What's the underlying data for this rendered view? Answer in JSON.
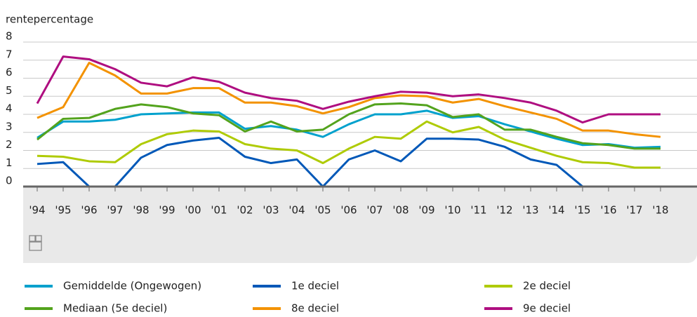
{
  "chart_data": {
    "type": "line",
    "title": "rentepercentage",
    "categories": [
      "'94",
      "'95",
      "'96",
      "'97",
      "'98",
      "'99",
      "'00",
      "'01",
      "'02",
      "'03",
      "'04",
      "'05",
      "'06",
      "'07",
      "'08",
      "'09",
      "'10",
      "'11",
      "'12",
      "'13",
      "'14",
      "'15",
      "'16",
      "'17",
      "'18"
    ],
    "ylim": [
      0,
      8
    ],
    "yticks": [
      0,
      1,
      2,
      3,
      4,
      5,
      6,
      7,
      8
    ],
    "grid": true,
    "series": [
      {
        "name": "Gemiddelde (Ongewogen)",
        "color": "#00a1cd",
        "values": [
          2.7,
          3.6,
          3.6,
          3.7,
          4.0,
          4.05,
          4.1,
          4.1,
          3.2,
          3.35,
          3.15,
          2.75,
          3.45,
          4.0,
          4.0,
          4.2,
          3.8,
          3.9,
          3.45,
          3.05,
          2.65,
          2.3,
          2.35,
          2.15,
          2.2
        ]
      },
      {
        "name": "1e deciel",
        "color": "#0058b8",
        "values": [
          1.25,
          1.35,
          0,
          0,
          1.6,
          2.3,
          2.55,
          2.7,
          1.65,
          1.3,
          1.5,
          0,
          1.5,
          2.0,
          1.4,
          2.65,
          2.65,
          2.6,
          2.2,
          1.5,
          1.2,
          0,
          0,
          0,
          0
        ]
      },
      {
        "name": "2e deciel",
        "color": "#afcb05",
        "values": [
          1.7,
          1.65,
          1.4,
          1.35,
          2.35,
          2.9,
          3.1,
          3.05,
          2.35,
          2.1,
          2.0,
          1.3,
          2.1,
          2.75,
          2.65,
          3.6,
          3.0,
          3.3,
          2.6,
          2.15,
          1.7,
          1.35,
          1.3,
          1.05,
          1.05
        ]
      },
      {
        "name": "Mediaan (5e deciel)",
        "color": "#53a31d",
        "values": [
          2.6,
          3.75,
          3.8,
          4.3,
          4.55,
          4.4,
          4.05,
          3.95,
          3.05,
          3.6,
          3.05,
          3.15,
          4.0,
          4.55,
          4.6,
          4.5,
          3.85,
          4.0,
          3.15,
          3.15,
          2.75,
          2.4,
          2.3,
          2.1,
          2.1
        ]
      },
      {
        "name": "8e deciel",
        "color": "#f39200",
        "values": [
          3.8,
          4.4,
          6.85,
          6.15,
          5.15,
          5.15,
          5.45,
          5.45,
          4.65,
          4.65,
          4.45,
          4.05,
          4.4,
          4.9,
          5.05,
          5.0,
          4.65,
          4.85,
          4.45,
          4.1,
          3.75,
          3.1,
          3.1,
          2.9,
          2.75
        ]
      },
      {
        "name": "9e deciel",
        "color": "#af0e80",
        "values": [
          4.6,
          7.2,
          7.05,
          6.5,
          5.75,
          5.55,
          6.05,
          5.8,
          5.2,
          4.9,
          4.75,
          4.3,
          4.7,
          5.0,
          5.25,
          5.2,
          5.0,
          5.1,
          4.9,
          4.65,
          4.2,
          3.55,
          4.0,
          4.0,
          4.0
        ]
      }
    ]
  }
}
